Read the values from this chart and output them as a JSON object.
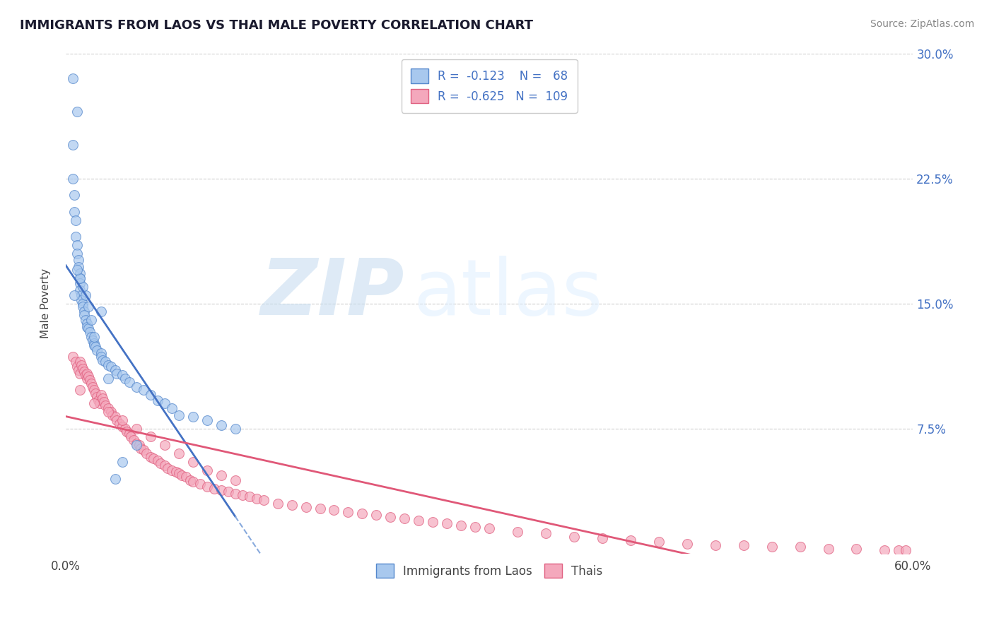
{
  "title": "IMMIGRANTS FROM LAOS VS THAI MALE POVERTY CORRELATION CHART",
  "source": "Source: ZipAtlas.com",
  "ylabel": "Male Poverty",
  "xlim": [
    0.0,
    0.6
  ],
  "ylim": [
    0.0,
    0.3
  ],
  "yticks": [
    0.075,
    0.15,
    0.225,
    0.3
  ],
  "ytick_labels": [
    "7.5%",
    "15.0%",
    "22.5%",
    "30.0%"
  ],
  "blue_R": -0.123,
  "blue_N": 68,
  "pink_R": -0.625,
  "pink_N": 109,
  "blue_color": "#A8C8EE",
  "pink_color": "#F4A8BC",
  "blue_edge_color": "#5588CC",
  "pink_edge_color": "#E06080",
  "blue_line_color": "#4472C4",
  "pink_line_color": "#E05878",
  "dashed_line_color": "#88AADD",
  "grid_color": "#CCCCCC",
  "legend_label_blue": "Immigrants from Laos",
  "legend_label_pink": "Thais",
  "blue_scatter_x": [
    0.005,
    0.008,
    0.005,
    0.005,
    0.006,
    0.006,
    0.007,
    0.007,
    0.008,
    0.008,
    0.009,
    0.009,
    0.01,
    0.01,
    0.01,
    0.01,
    0.011,
    0.011,
    0.012,
    0.012,
    0.013,
    0.013,
    0.014,
    0.015,
    0.015,
    0.016,
    0.017,
    0.018,
    0.019,
    0.02,
    0.02,
    0.021,
    0.022,
    0.025,
    0.025,
    0.026,
    0.028,
    0.03,
    0.032,
    0.035,
    0.036,
    0.04,
    0.042,
    0.045,
    0.05,
    0.055,
    0.06,
    0.065,
    0.07,
    0.075,
    0.08,
    0.09,
    0.1,
    0.11,
    0.12,
    0.02,
    0.018,
    0.016,
    0.014,
    0.012,
    0.01,
    0.008,
    0.006,
    0.03,
    0.025,
    0.05,
    0.04,
    0.035
  ],
  "blue_scatter_y": [
    0.285,
    0.265,
    0.245,
    0.225,
    0.215,
    0.205,
    0.2,
    0.19,
    0.185,
    0.18,
    0.176,
    0.172,
    0.168,
    0.165,
    0.162,
    0.158,
    0.155,
    0.152,
    0.15,
    0.148,
    0.145,
    0.143,
    0.14,
    0.138,
    0.136,
    0.135,
    0.133,
    0.13,
    0.128,
    0.126,
    0.125,
    0.124,
    0.122,
    0.12,
    0.118,
    0.116,
    0.115,
    0.113,
    0.112,
    0.11,
    0.108,
    0.107,
    0.105,
    0.103,
    0.1,
    0.098,
    0.095,
    0.092,
    0.09,
    0.087,
    0.083,
    0.082,
    0.08,
    0.077,
    0.075,
    0.13,
    0.14,
    0.148,
    0.155,
    0.16,
    0.165,
    0.17,
    0.155,
    0.105,
    0.145,
    0.065,
    0.055,
    0.045
  ],
  "pink_scatter_x": [
    0.005,
    0.007,
    0.008,
    0.009,
    0.01,
    0.01,
    0.011,
    0.012,
    0.013,
    0.014,
    0.015,
    0.015,
    0.016,
    0.017,
    0.018,
    0.019,
    0.02,
    0.021,
    0.022,
    0.023,
    0.024,
    0.025,
    0.026,
    0.027,
    0.028,
    0.03,
    0.032,
    0.033,
    0.035,
    0.036,
    0.038,
    0.04,
    0.042,
    0.043,
    0.045,
    0.046,
    0.048,
    0.05,
    0.052,
    0.053,
    0.055,
    0.057,
    0.06,
    0.062,
    0.065,
    0.067,
    0.07,
    0.072,
    0.075,
    0.078,
    0.08,
    0.082,
    0.085,
    0.088,
    0.09,
    0.095,
    0.1,
    0.105,
    0.11,
    0.115,
    0.12,
    0.125,
    0.13,
    0.135,
    0.14,
    0.15,
    0.16,
    0.17,
    0.18,
    0.19,
    0.2,
    0.21,
    0.22,
    0.23,
    0.24,
    0.25,
    0.26,
    0.27,
    0.28,
    0.29,
    0.3,
    0.32,
    0.34,
    0.36,
    0.38,
    0.4,
    0.42,
    0.44,
    0.46,
    0.48,
    0.5,
    0.52,
    0.54,
    0.56,
    0.58,
    0.59,
    0.595,
    0.01,
    0.02,
    0.03,
    0.04,
    0.05,
    0.06,
    0.07,
    0.08,
    0.09,
    0.1,
    0.11,
    0.12
  ],
  "pink_scatter_y": [
    0.118,
    0.115,
    0.112,
    0.11,
    0.108,
    0.115,
    0.113,
    0.111,
    0.109,
    0.107,
    0.105,
    0.108,
    0.106,
    0.104,
    0.102,
    0.1,
    0.098,
    0.096,
    0.094,
    0.092,
    0.09,
    0.095,
    0.093,
    0.091,
    0.089,
    0.087,
    0.085,
    0.083,
    0.082,
    0.08,
    0.078,
    0.076,
    0.075,
    0.073,
    0.072,
    0.07,
    0.068,
    0.066,
    0.065,
    0.063,
    0.062,
    0.06,
    0.058,
    0.057,
    0.056,
    0.054,
    0.053,
    0.051,
    0.05,
    0.049,
    0.048,
    0.047,
    0.046,
    0.044,
    0.043,
    0.042,
    0.04,
    0.039,
    0.038,
    0.037,
    0.036,
    0.035,
    0.034,
    0.033,
    0.032,
    0.03,
    0.029,
    0.028,
    0.027,
    0.026,
    0.025,
    0.024,
    0.023,
    0.022,
    0.021,
    0.02,
    0.019,
    0.018,
    0.017,
    0.016,
    0.015,
    0.013,
    0.012,
    0.01,
    0.009,
    0.008,
    0.007,
    0.006,
    0.005,
    0.005,
    0.004,
    0.004,
    0.003,
    0.003,
    0.002,
    0.002,
    0.002,
    0.098,
    0.09,
    0.085,
    0.08,
    0.075,
    0.07,
    0.065,
    0.06,
    0.055,
    0.05,
    0.047,
    0.044
  ]
}
